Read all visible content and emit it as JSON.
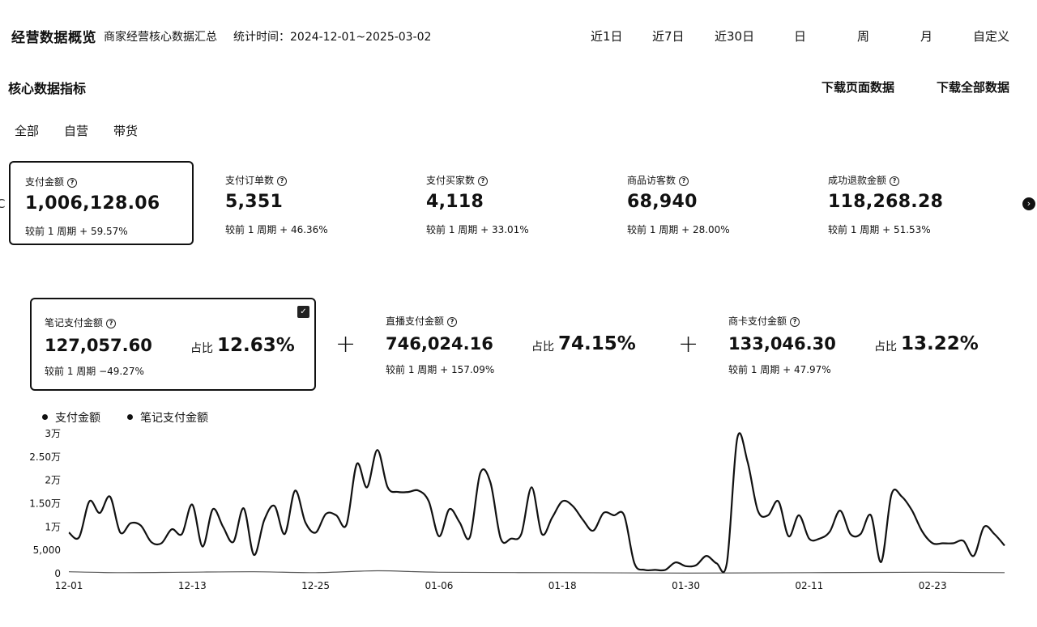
{
  "header": {
    "title": "经营数据概览",
    "subtitle": "商家经营核心数据汇总",
    "range": "统计时间：2024-12-01~2025-03-02",
    "time_ranges": [
      "近1日",
      "近7日",
      "近30日",
      "日",
      "周",
      "月",
      "自定义"
    ]
  },
  "section": {
    "title": "核心数据指标",
    "download_page": "下载页面数据",
    "download_all": "下载全部数据"
  },
  "filters": [
    "全部",
    "自营",
    "带货"
  ],
  "metrics": [
    {
      "label": "支付金额",
      "value": "1,006,128.06",
      "compare": "较前 1 周期  + 59.57%"
    },
    {
      "label": "支付订单数",
      "value": "5,351",
      "compare": "较前 1 周期  + 46.36%"
    },
    {
      "label": "支付买家数",
      "value": "4,118",
      "compare": "较前 1 周期  + 33.01%"
    },
    {
      "label": "商品访客数",
      "value": "68,940",
      "compare": "较前 1 周期  + 28.00%"
    },
    {
      "label": "成功退款金额",
      "value": "118,268.28",
      "compare": "较前 1 周期  + 51.53%"
    }
  ],
  "breakdown": [
    {
      "label": "笔记支付金额",
      "value": "127,057.60",
      "compare": "较前 1 周期  −49.27%",
      "share_label": "占比",
      "share": "12.63%"
    },
    {
      "label": "直播支付金额",
      "value": "746,024.16",
      "compare": "较前 1 周期  + 157.09%",
      "share_label": "占比",
      "share": "74.15%"
    },
    {
      "label": "商卡支付金额",
      "value": "133,046.30",
      "compare": "较前 1 周期  + 47.97%",
      "share_label": "占比",
      "share": "13.22%"
    }
  ],
  "icons": {
    "question": "?",
    "next": "›",
    "check": "✓",
    "plus": "+"
  },
  "chart_data": {
    "type": "line",
    "legend": [
      "支付金额",
      "笔记支付金额"
    ],
    "y_ticks": [
      "0",
      "5,000",
      "1万",
      "1.50万",
      "2万",
      "2.50万",
      "3万"
    ],
    "ylim": [
      0,
      30000
    ],
    "x_ticks": [
      "12-01",
      "12-13",
      "12-25",
      "01-06",
      "01-18",
      "01-30",
      "02-11",
      "02-23"
    ],
    "series": [
      {
        "name": "支付金额",
        "x": [
          "12-01",
          "12-02",
          "12-03",
          "12-04",
          "12-05",
          "12-06",
          "12-07",
          "12-08",
          "12-09",
          "12-10",
          "12-11",
          "12-12",
          "12-13",
          "12-14",
          "12-15",
          "12-16",
          "12-17",
          "12-18",
          "12-19",
          "12-20",
          "12-21",
          "12-22",
          "12-23",
          "12-24",
          "12-25",
          "12-26",
          "12-27",
          "12-28",
          "12-29",
          "12-30",
          "12-31",
          "01-01",
          "01-02",
          "01-03",
          "01-04",
          "01-05",
          "01-06",
          "01-07",
          "01-08",
          "01-09",
          "01-10",
          "01-11",
          "01-12",
          "01-13",
          "01-14",
          "01-15",
          "01-16",
          "01-17",
          "01-18",
          "01-19",
          "01-20",
          "01-21",
          "01-22",
          "01-23",
          "01-24",
          "01-25",
          "01-26",
          "01-27",
          "01-28",
          "01-29",
          "01-30",
          "01-31",
          "02-01",
          "02-02",
          "02-03",
          "02-04",
          "02-05",
          "02-06",
          "02-07",
          "02-08",
          "02-09",
          "02-10",
          "02-11",
          "02-12",
          "02-13",
          "02-14",
          "02-15",
          "02-16",
          "02-17",
          "02-18",
          "02-19",
          "02-20",
          "02-21",
          "02-22",
          "02-23",
          "02-24",
          "02-25",
          "02-26",
          "02-27",
          "02-28",
          "03-01",
          "03-02"
        ],
        "values": [
          8800,
          7800,
          15500,
          13000,
          16500,
          8800,
          10800,
          10300,
          6800,
          6500,
          9500,
          8500,
          14800,
          5800,
          13800,
          10000,
          6800,
          14000,
          4000,
          11500,
          14500,
          8500,
          17800,
          11000,
          8800,
          12800,
          12500,
          10500,
          23500,
          18500,
          26500,
          18500,
          17500,
          17500,
          17800,
          15500,
          8000,
          13800,
          11000,
          7800,
          21500,
          19500,
          7500,
          7500,
          8500,
          18500,
          8500,
          12000,
          15500,
          14500,
          11500,
          9200,
          13000,
          12500,
          12500,
          2200,
          800,
          800,
          800,
          2400,
          1600,
          1800,
          3800,
          2200,
          2400,
          29000,
          24000,
          13500,
          12500,
          15500,
          8000,
          12500,
          7500,
          7500,
          9000,
          13500,
          8500,
          8500,
          12500,
          2500,
          17000,
          16500,
          13500,
          9000,
          6500,
          6500,
          6500,
          7000,
          3800,
          10000,
          8500,
          6000
        ]
      },
      {
        "name": "笔记支付金额",
        "x": [
          "12-01",
          "12-06",
          "12-12",
          "12-19",
          "12-25",
          "12-31",
          "01-06",
          "01-18",
          "01-30",
          "02-11",
          "02-23",
          "03-02"
        ],
        "values": [
          400,
          200,
          300,
          400,
          200,
          600,
          300,
          200,
          100,
          200,
          300,
          200
        ]
      }
    ]
  }
}
